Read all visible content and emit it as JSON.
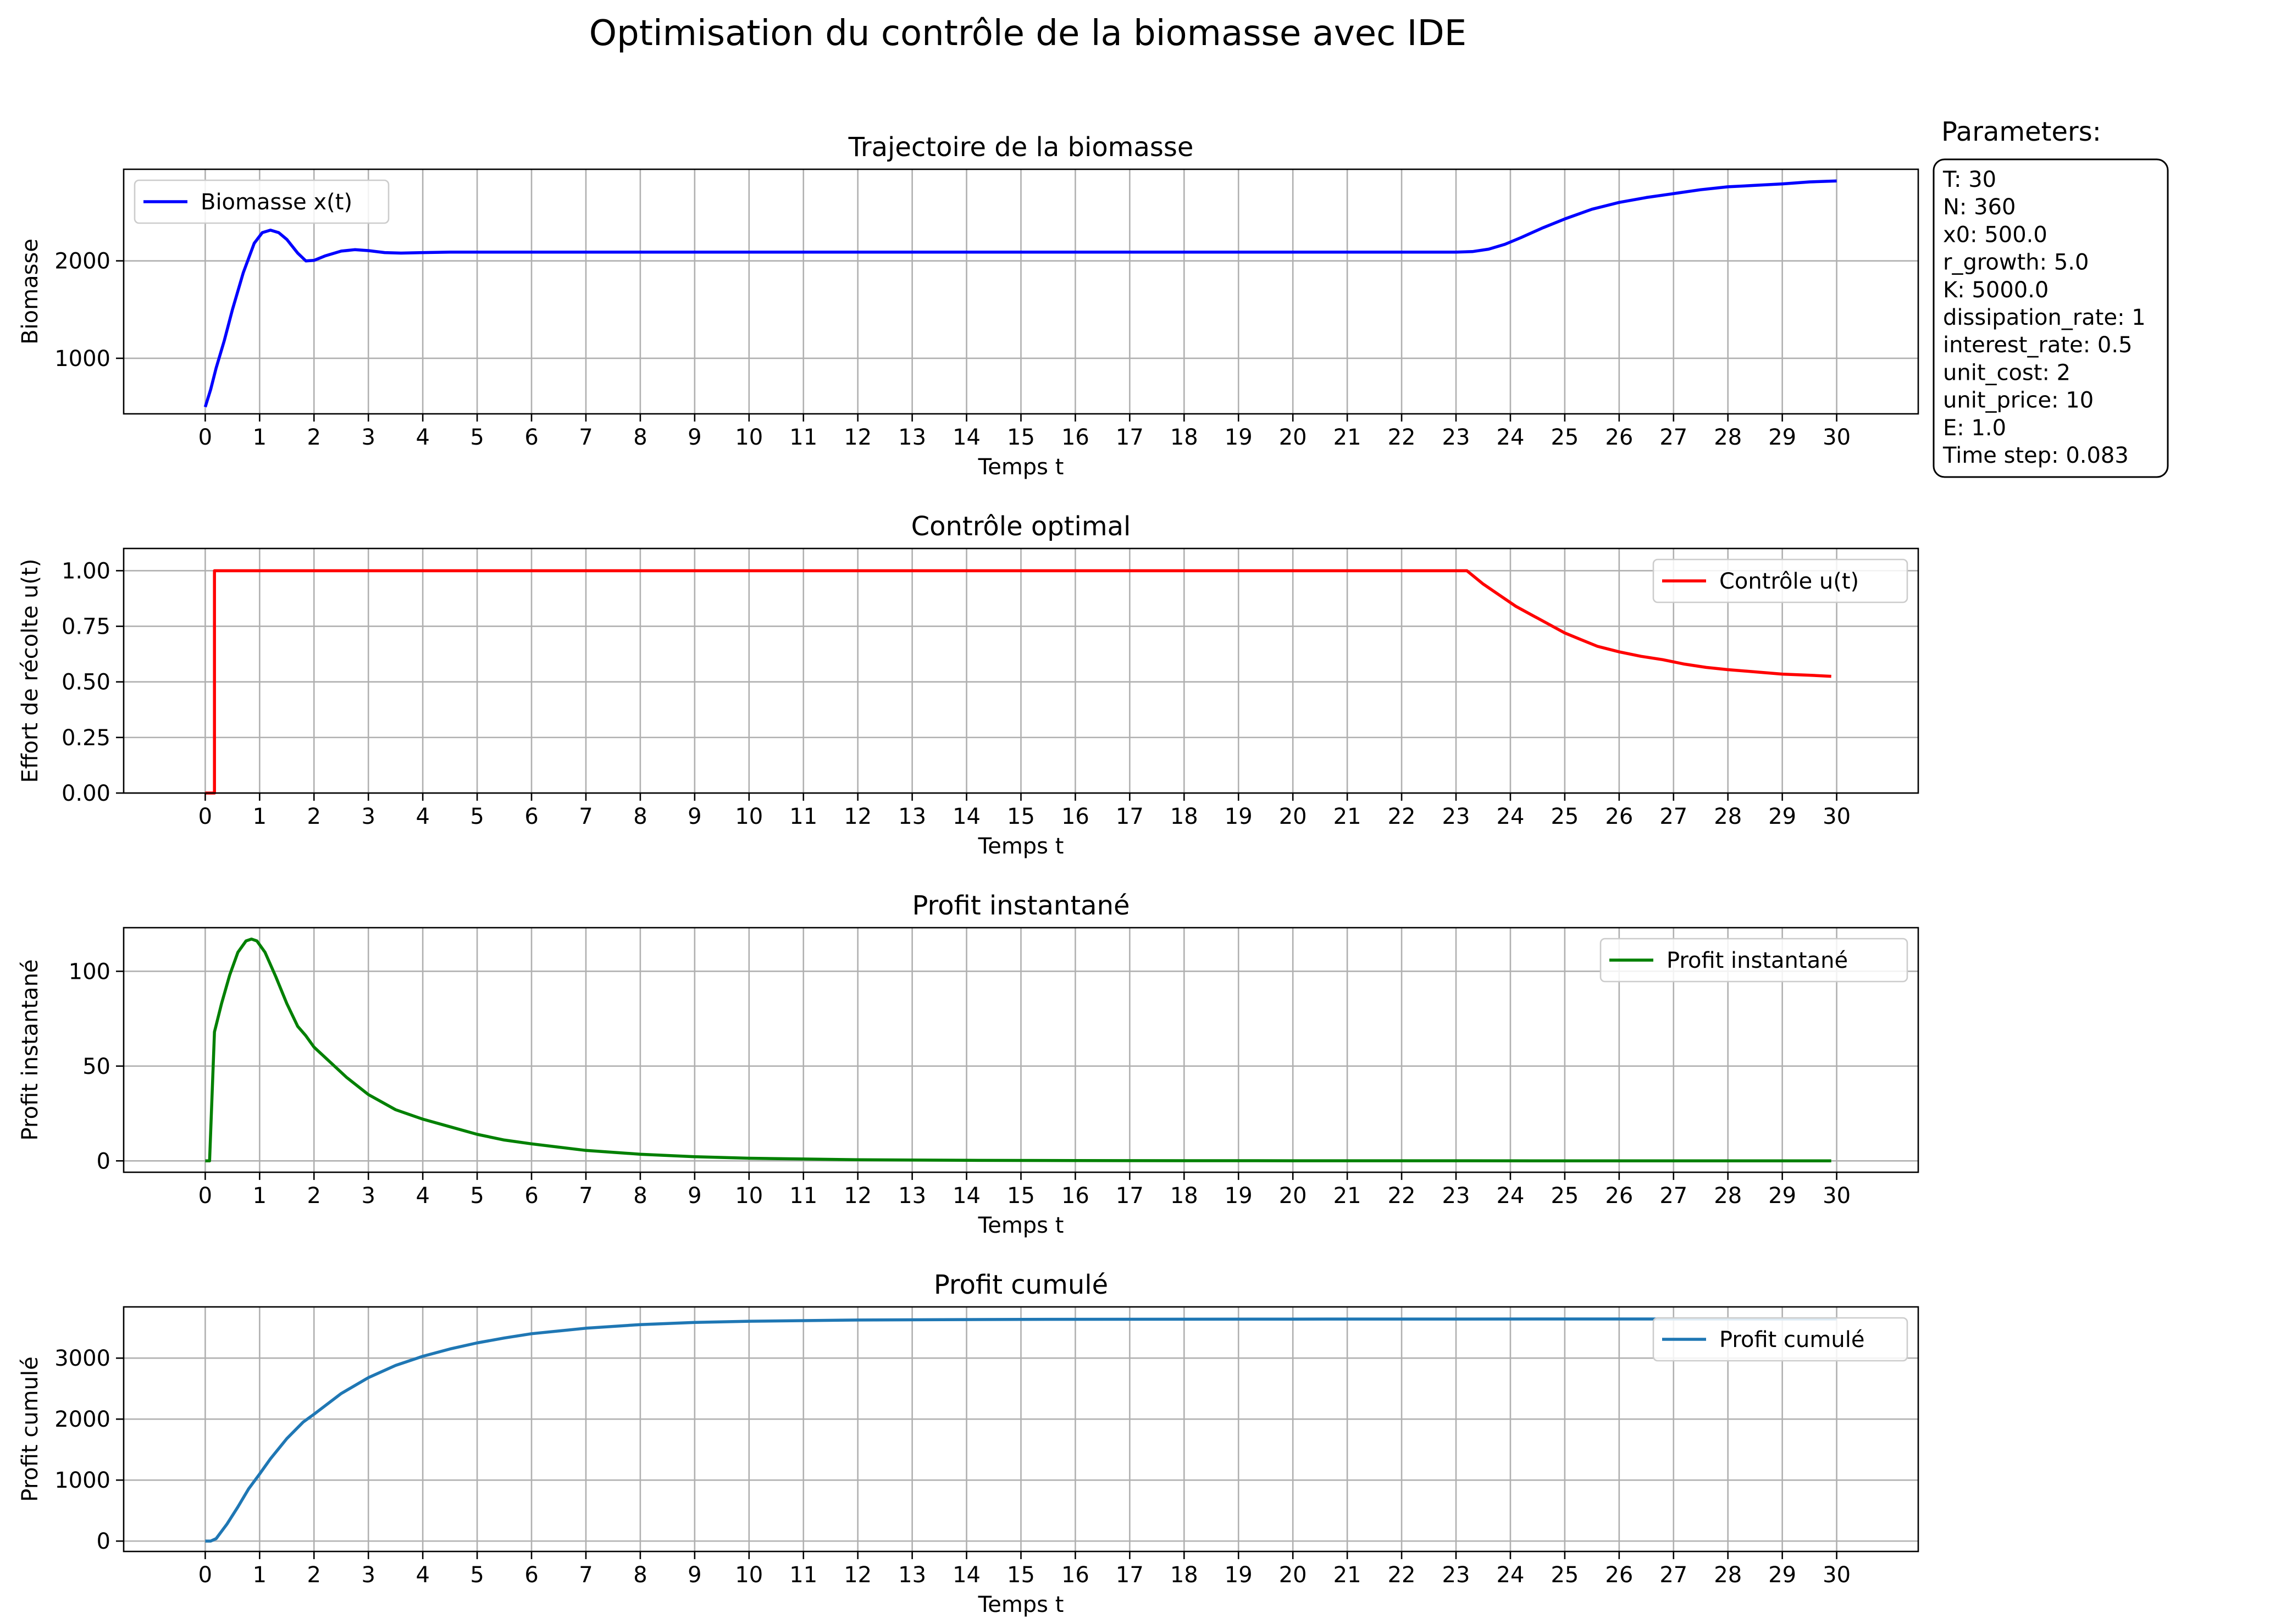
{
  "figure": {
    "title": "Optimisation du contrôle de la biomasse avec IDE"
  },
  "parameters": {
    "title": "Parameters:",
    "lines": [
      "T: 30",
      "N: 360",
      "x0: 500.0",
      "r_growth: 5.0",
      "K: 5000.0",
      "dissipation_rate: 1",
      "interest_rate: 0.5",
      "unit_cost: 2",
      "unit_price: 10",
      "E: 1.0",
      "Time step: 0.083"
    ]
  },
  "chart_data": [
    {
      "type": "line",
      "title": "Trajectoire de la biomasse",
      "xlabel": "Temps t",
      "ylabel": "Biomasse",
      "xlim": [
        -1.5,
        31.5
      ],
      "ylim": [
        430,
        2940
      ],
      "xticks": [
        0,
        1,
        2,
        3,
        4,
        5,
        6,
        7,
        8,
        9,
        10,
        11,
        12,
        13,
        14,
        15,
        16,
        17,
        18,
        19,
        20,
        21,
        22,
        23,
        24,
        25,
        26,
        27,
        28,
        29,
        30
      ],
      "yticks": [
        1000,
        2000
      ],
      "legend": "upper left",
      "grid": true,
      "series": [
        {
          "name": "Biomasse x(t)",
          "color": "#0000ff",
          "x": [
            0,
            0.1,
            0.2,
            0.35,
            0.5,
            0.7,
            0.9,
            1.05,
            1.2,
            1.35,
            1.5,
            1.7,
            1.85,
            2.0,
            2.2,
            2.5,
            2.75,
            3.0,
            3.3,
            3.6,
            4.0,
            4.5,
            5.0,
            10.0,
            15.0,
            20.0,
            23.0,
            23.3,
            23.6,
            23.9,
            24.2,
            24.6,
            25.0,
            25.5,
            26.0,
            26.5,
            27.0,
            27.5,
            28.0,
            28.5,
            29.0,
            29.5,
            30.0
          ],
          "y": [
            500,
            680,
            900,
            1180,
            1500,
            1880,
            2180,
            2290,
            2315,
            2290,
            2220,
            2080,
            2000,
            2005,
            2050,
            2100,
            2115,
            2105,
            2085,
            2080,
            2085,
            2090,
            2090,
            2090,
            2090,
            2090,
            2090,
            2095,
            2120,
            2170,
            2240,
            2340,
            2430,
            2530,
            2600,
            2650,
            2690,
            2730,
            2760,
            2775,
            2790,
            2810,
            2820
          ]
        }
      ]
    },
    {
      "type": "line",
      "title": "Contrôle optimal",
      "xlabel": "Temps t",
      "ylabel": "Effort de récolte u(t)",
      "xlim": [
        -1.5,
        31.5
      ],
      "ylim": [
        0.0,
        1.1
      ],
      "xticks": [
        0,
        1,
        2,
        3,
        4,
        5,
        6,
        7,
        8,
        9,
        10,
        11,
        12,
        13,
        14,
        15,
        16,
        17,
        18,
        19,
        20,
        21,
        22,
        23,
        24,
        25,
        26,
        27,
        28,
        29,
        30
      ],
      "yticks": [
        0.0,
        0.25,
        0.5,
        0.75,
        1.0
      ],
      "yticklabels": [
        "0.00",
        "0.25",
        "0.50",
        "0.75",
        "1.00"
      ],
      "legend": "upper right",
      "grid": true,
      "series": [
        {
          "name": "Contrôle u(t)",
          "color": "#ff0000",
          "x": [
            0,
            0.17,
            0.17,
            23.2,
            23.5,
            23.8,
            24.1,
            24.4,
            24.7,
            25.0,
            25.3,
            25.6,
            26.0,
            26.4,
            26.8,
            27.2,
            27.6,
            28.0,
            28.5,
            29.0,
            29.5,
            29.9
          ],
          "y": [
            0.0,
            0.0,
            1.0,
            1.0,
            0.94,
            0.89,
            0.84,
            0.8,
            0.76,
            0.72,
            0.69,
            0.66,
            0.635,
            0.615,
            0.6,
            0.58,
            0.565,
            0.555,
            0.545,
            0.535,
            0.53,
            0.525
          ]
        }
      ]
    },
    {
      "type": "line",
      "title": "Profit instantané",
      "xlabel": "Temps t",
      "ylabel": "Profit instantané",
      "xlim": [
        -1.5,
        31.5
      ],
      "ylim": [
        -6,
        123
      ],
      "xticks": [
        0,
        1,
        2,
        3,
        4,
        5,
        6,
        7,
        8,
        9,
        10,
        11,
        12,
        13,
        14,
        15,
        16,
        17,
        18,
        19,
        20,
        21,
        22,
        23,
        24,
        25,
        26,
        27,
        28,
        29,
        30
      ],
      "yticks": [
        0,
        50,
        100
      ],
      "legend": "upper right",
      "grid": true,
      "series": [
        {
          "name": "Profit instantané",
          "color": "#008000",
          "x": [
            0,
            0.08,
            0.17,
            0.3,
            0.45,
            0.6,
            0.75,
            0.85,
            0.95,
            1.1,
            1.3,
            1.5,
            1.7,
            1.85,
            2.0,
            2.3,
            2.6,
            3.0,
            3.5,
            4.0,
            4.5,
            5.0,
            5.5,
            6.0,
            7.0,
            8.0,
            9.0,
            10.0,
            12.0,
            14.0,
            16.0,
            20.0,
            25.0,
            29.9
          ],
          "y": [
            0,
            0,
            68,
            83,
            98,
            110,
            116,
            117,
            116,
            110,
            97,
            83,
            71,
            66,
            60,
            52,
            44,
            35,
            27,
            22,
            18,
            14,
            11,
            9,
            5.5,
            3.5,
            2.2,
            1.4,
            0.6,
            0.3,
            0.15,
            0.05,
            0.02,
            0.01
          ]
        }
      ]
    },
    {
      "type": "line",
      "title": "Profit cumulé",
      "xlabel": "Temps t",
      "ylabel": "Profit cumulé",
      "xlim": [
        -1.5,
        31.5
      ],
      "ylim": [
        -170,
        3840
      ],
      "xticks": [
        0,
        1,
        2,
        3,
        4,
        5,
        6,
        7,
        8,
        9,
        10,
        11,
        12,
        13,
        14,
        15,
        16,
        17,
        18,
        19,
        20,
        21,
        22,
        23,
        24,
        25,
        26,
        27,
        28,
        29,
        30
      ],
      "yticks": [
        0,
        1000,
        2000,
        3000
      ],
      "legend": "upper right",
      "grid": true,
      "series": [
        {
          "name": "Profit cumulé",
          "color": "#1f77b4",
          "x": [
            0,
            0.1,
            0.2,
            0.4,
            0.6,
            0.8,
            1.0,
            1.2,
            1.5,
            1.8,
            2.0,
            2.5,
            3.0,
            3.5,
            4.0,
            4.5,
            5.0,
            5.5,
            6.0,
            7.0,
            8.0,
            9.0,
            10.0,
            12.0,
            15.0,
            20.0,
            25.0,
            30.0
          ],
          "y": [
            0,
            0,
            40,
            280,
            560,
            860,
            1100,
            1350,
            1680,
            1950,
            2080,
            2420,
            2680,
            2880,
            3030,
            3150,
            3250,
            3330,
            3400,
            3490,
            3550,
            3585,
            3605,
            3625,
            3635,
            3640,
            3642,
            3642
          ]
        }
      ]
    }
  ]
}
